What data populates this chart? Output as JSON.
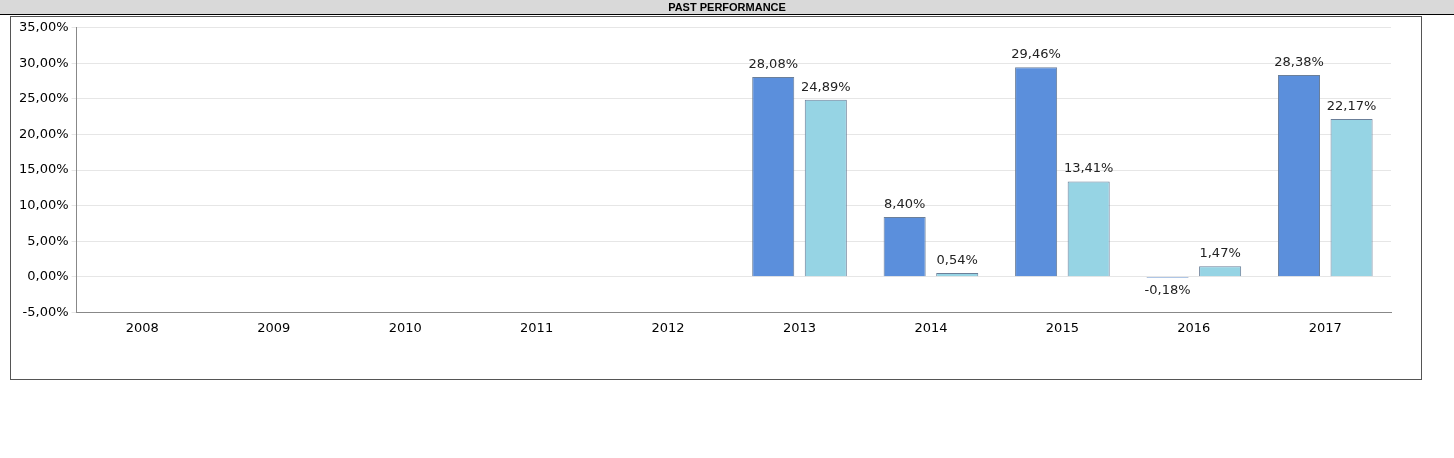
{
  "chart_data": {
    "type": "bar",
    "title": "PAST PERFORMANCE",
    "categories": [
      "2008",
      "2009",
      "2010",
      "2011",
      "2012",
      "2013",
      "2014",
      "2015",
      "2016",
      "2017"
    ],
    "series": [
      {
        "color": "#5b8fdc",
        "values": [
          null,
          null,
          null,
          null,
          null,
          28.08,
          8.4,
          29.46,
          -0.18,
          28.38
        ],
        "value_labels": [
          null,
          null,
          null,
          null,
          null,
          "28,08%",
          "8,40%",
          "29,46%",
          "-0,18%",
          "28,38%"
        ]
      },
      {
        "color": "#96d4e4",
        "values": [
          null,
          null,
          null,
          null,
          null,
          24.89,
          0.54,
          13.41,
          1.47,
          22.17
        ],
        "value_labels": [
          null,
          null,
          null,
          null,
          null,
          "24,89%",
          "0,54%",
          "13,41%",
          "1,47%",
          "22,17%"
        ]
      }
    ],
    "ylim": [
      -5,
      35
    ],
    "yticks": [
      {
        "value": -5,
        "label": "-5,00%"
      },
      {
        "value": 0,
        "label": "0,00%"
      },
      {
        "value": 5,
        "label": "5,00%"
      },
      {
        "value": 10,
        "label": "10,00%"
      },
      {
        "value": 15,
        "label": "15,00%"
      },
      {
        "value": 20,
        "label": "20,00%"
      },
      {
        "value": 25,
        "label": "25,00%"
      },
      {
        "value": 30,
        "label": "30,00%"
      },
      {
        "value": 35,
        "label": "35,00%"
      }
    ],
    "grid": "y",
    "legend": false
  }
}
